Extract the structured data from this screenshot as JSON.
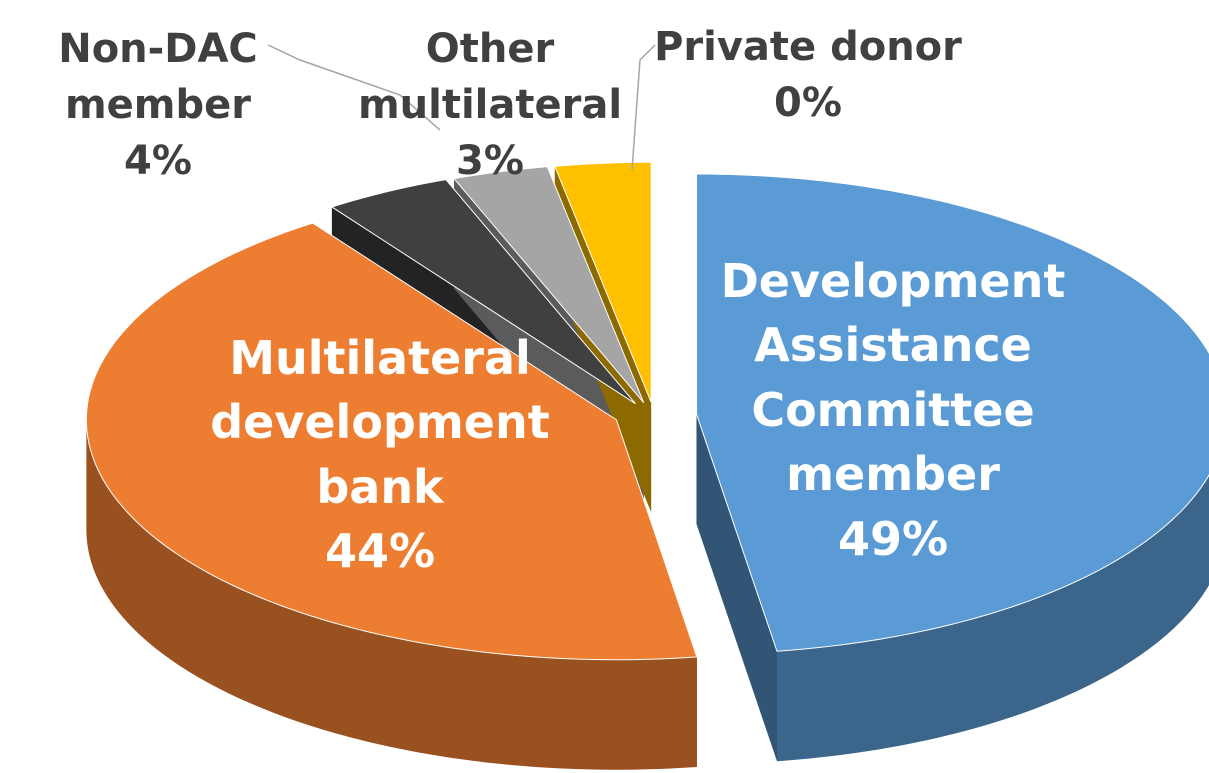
{
  "chart_data": {
    "type": "pie3d",
    "categories": [
      "Development Assistance Committee member",
      "Multilateral development bank",
      "Non-DAC member",
      "Other multilateral",
      null,
      "Private donor"
    ],
    "values": [
      49,
      44,
      4,
      3,
      3,
      0
    ],
    "value_labels": [
      "49%",
      "44%",
      "4%",
      "3%",
      null,
      "0%"
    ],
    "colors": [
      "#5b9bd5",
      "#ed7d31",
      "#404040",
      "#a5a5a5",
      "#ffc000",
      "#4472c4"
    ]
  }
}
